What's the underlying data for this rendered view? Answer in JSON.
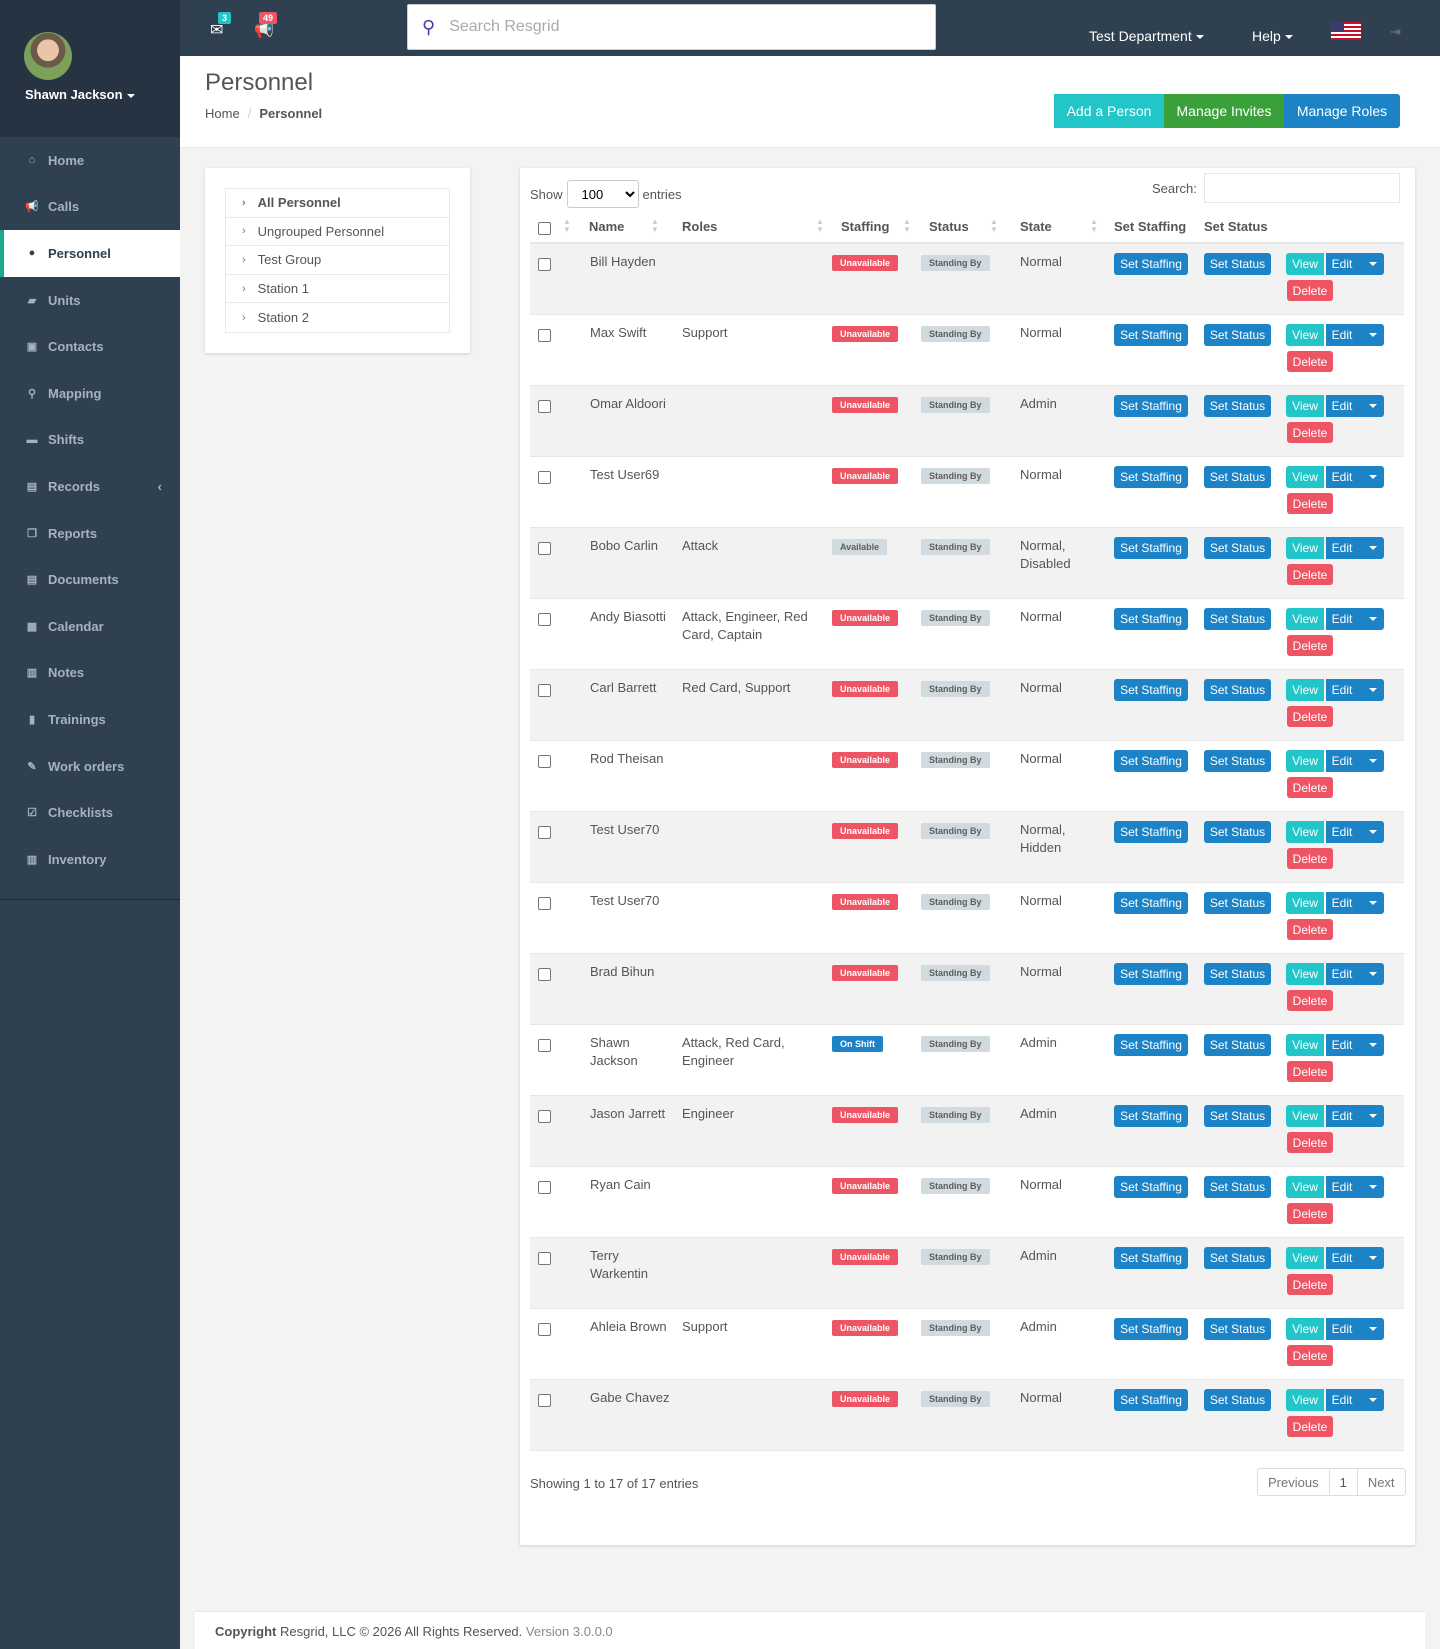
{
  "user": {
    "name": "Shawn Jackson"
  },
  "topbar": {
    "mail_count": "3",
    "notif_count": "49",
    "search_placeholder": "Search Resgrid",
    "department": "Test Department",
    "help": "Help"
  },
  "nav": [
    {
      "label": "Home",
      "icon": "home-icon"
    },
    {
      "label": "Calls",
      "icon": "bullhorn-icon"
    },
    {
      "label": "Personnel",
      "icon": "user-icon",
      "active": true
    },
    {
      "label": "Units",
      "icon": "truck-icon"
    },
    {
      "label": "Contacts",
      "icon": "address-book-icon"
    },
    {
      "label": "Mapping",
      "icon": "map-marker-icon"
    },
    {
      "label": "Shifts",
      "icon": "briefcase-icon"
    },
    {
      "label": "Records",
      "icon": "file-icon",
      "has_submenu": true
    },
    {
      "label": "Reports",
      "icon": "copy-icon"
    },
    {
      "label": "Documents",
      "icon": "document-icon"
    },
    {
      "label": "Calendar",
      "icon": "calendar-icon"
    },
    {
      "label": "Notes",
      "icon": "notes-icon"
    },
    {
      "label": "Trainings",
      "icon": "book-icon"
    },
    {
      "label": "Work orders",
      "icon": "wrench-icon"
    },
    {
      "label": "Checklists",
      "icon": "check-square-icon"
    },
    {
      "label": "Inventory",
      "icon": "barcode-icon"
    }
  ],
  "header": {
    "title": "Personnel",
    "breadcrumb_home": "Home",
    "breadcrumb_current": "Personnel",
    "buttons": [
      {
        "label": "Add a Person",
        "color": "#23c6c8"
      },
      {
        "label": "Manage Invites",
        "color": "#3aa13a"
      },
      {
        "label": "Manage Roles",
        "color": "#1c84c6"
      }
    ]
  },
  "groups": [
    "All Personnel",
    "Ungrouped Personnel",
    "Test Group",
    "Station 1",
    "Station 2"
  ],
  "table": {
    "show_label": "Show",
    "entries_label": "entries",
    "page_size": "100",
    "search_label": "Search:",
    "columns": {
      "name": "Name",
      "roles": "Roles",
      "staffing": "Staffing",
      "status": "Status",
      "state": "State",
      "set_staffing": "Set Staffing",
      "set_status": "Set Status"
    },
    "actions": {
      "set_staffing": "Set Staffing",
      "set_status": "Set Status",
      "view": "View",
      "edit": "Edit",
      "delete": "Delete"
    },
    "rows": [
      {
        "name": "Bill Hayden",
        "roles": "",
        "staffing": "Unavailable",
        "staffing_style": "danger",
        "status": "Standing By",
        "state": "Normal"
      },
      {
        "name": "Max Swift",
        "roles": "Support",
        "staffing": "Unavailable",
        "staffing_style": "danger",
        "status": "Standing By",
        "state": "Normal"
      },
      {
        "name": "Omar Aldoori",
        "roles": "",
        "staffing": "Unavailable",
        "staffing_style": "danger",
        "status": "Standing By",
        "state": "Admin"
      },
      {
        "name": "Test User69",
        "roles": "",
        "staffing": "Unavailable",
        "staffing_style": "danger",
        "status": "Standing By",
        "state": "Normal"
      },
      {
        "name": "Bobo Carlin",
        "roles": "Attack",
        "staffing": "Available",
        "staffing_style": "default",
        "status": "Standing By",
        "state": "Normal, Disabled"
      },
      {
        "name": "Andy Biasotti",
        "roles": "Attack, Engineer, Red Card, Captain",
        "staffing": "Unavailable",
        "staffing_style": "danger",
        "status": "Standing By",
        "state": "Normal"
      },
      {
        "name": "Carl Barrett",
        "roles": "Red Card, Support",
        "staffing": "Unavailable",
        "staffing_style": "danger",
        "status": "Standing By",
        "state": "Normal"
      },
      {
        "name": "Rod Theisan",
        "roles": "",
        "staffing": "Unavailable",
        "staffing_style": "danger",
        "status": "Standing By",
        "state": "Normal"
      },
      {
        "name": "Test User70",
        "roles": "",
        "staffing": "Unavailable",
        "staffing_style": "danger",
        "status": "Standing By",
        "state": "Normal, Hidden"
      },
      {
        "name": "Test User70",
        "roles": "",
        "staffing": "Unavailable",
        "staffing_style": "danger",
        "status": "Standing By",
        "state": "Normal"
      },
      {
        "name": "Brad Bihun",
        "roles": "",
        "staffing": "Unavailable",
        "staffing_style": "danger",
        "status": "Standing By",
        "state": "Normal"
      },
      {
        "name": "Shawn Jackson",
        "roles": "Attack, Red Card, Engineer",
        "staffing": "On Shift",
        "staffing_style": "primary",
        "status": "Standing By",
        "state": "Admin"
      },
      {
        "name": "Jason Jarrett",
        "roles": "Engineer",
        "staffing": "Unavailable",
        "staffing_style": "danger",
        "status": "Standing By",
        "state": "Admin"
      },
      {
        "name": "Ryan Cain",
        "roles": "",
        "staffing": "Unavailable",
        "staffing_style": "danger",
        "status": "Standing By",
        "state": "Normal"
      },
      {
        "name": "Terry Warkentin",
        "roles": "",
        "staffing": "Unavailable",
        "staffing_style": "danger",
        "status": "Standing By",
        "state": "Admin"
      },
      {
        "name": "Ahleia Brown",
        "roles": "Support",
        "staffing": "Unavailable",
        "staffing_style": "danger",
        "status": "Standing By",
        "state": "Admin"
      },
      {
        "name": "Gabe Chavez",
        "roles": "",
        "staffing": "Unavailable",
        "staffing_style": "danger",
        "status": "Standing By",
        "state": "Normal"
      }
    ],
    "info": "Showing 1 to 17 of 17 entries",
    "pagination": {
      "previous": "Previous",
      "page": "1",
      "next": "Next"
    }
  },
  "footer": {
    "copyright_bold": "Copyright",
    "copyright_text": "Resgrid, LLC © 2026 All Rights Reserved.",
    "version": "Version 3.0.0.0"
  }
}
